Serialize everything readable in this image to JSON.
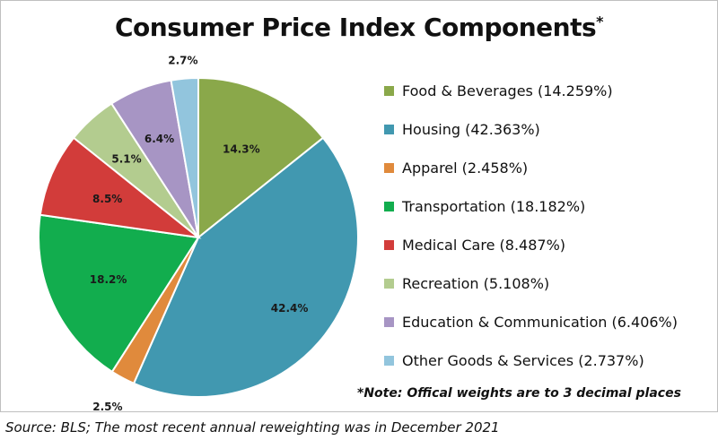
{
  "chart_data": {
    "type": "pie",
    "title": "Consumer Price Index Components",
    "title_marker": "*",
    "categories": [
      "Food & Beverages",
      "Housing",
      "Apparel",
      "Transportation",
      "Medical Care",
      "Recreation",
      "Education & Communication",
      "Other Goods & Services"
    ],
    "values": [
      14.259,
      42.363,
      2.458,
      18.182,
      8.487,
      5.108,
      6.406,
      2.737
    ],
    "slice_labels": [
      "14.3%",
      "42.4%",
      "2.5%",
      "18.2%",
      "8.5%",
      "5.1%",
      "6.4%",
      "2.7%"
    ],
    "legend_labels": [
      "Food & Beverages (14.259%)",
      "Housing (42.363%)",
      "Apparel (2.458%)",
      "Transportation (18.182%)",
      "Medical Care (8.487%)",
      "Recreation (5.108%)",
      "Education & Communication (6.406%)",
      "Other Goods & Services (2.737%)"
    ],
    "colors": [
      "#8aa84a",
      "#4198b0",
      "#e08a3c",
      "#12ad4e",
      "#d23c3a",
      "#b3cc8f",
      "#a795c4",
      "#92c5dd"
    ],
    "legend_position": "right",
    "note": "*Note: Offical weights are to 3 decimal places",
    "source": "Source: BLS; The most recent annual reweighting was in December 2021"
  }
}
